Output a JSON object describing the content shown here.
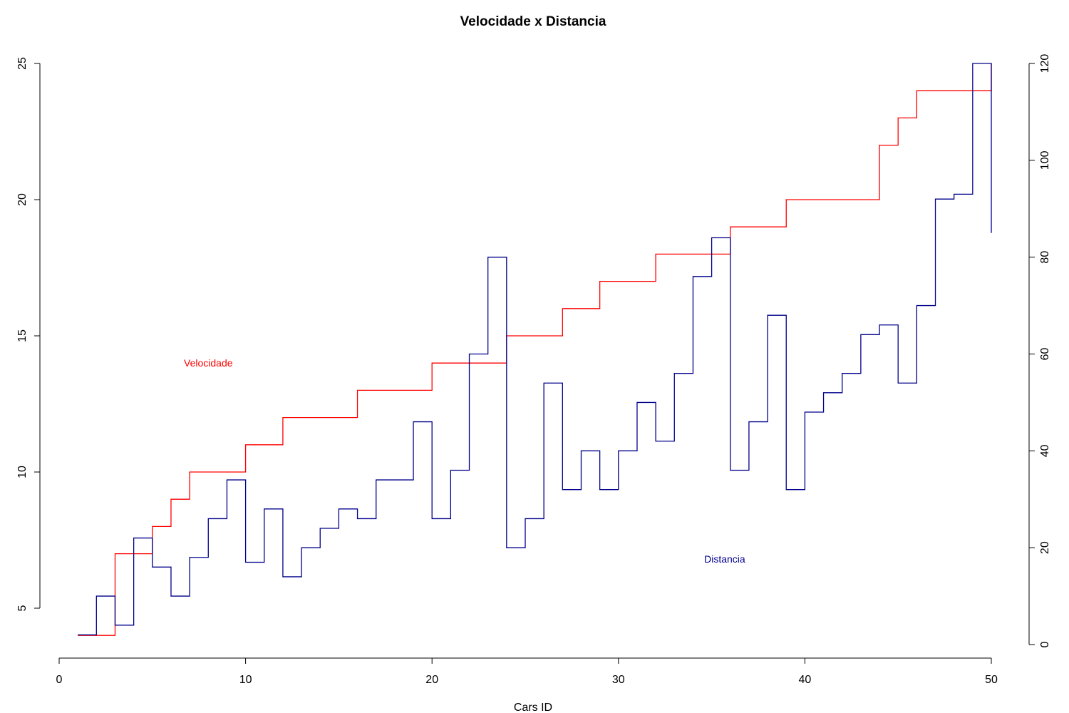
{
  "chart_data": {
    "type": "line",
    "step": true,
    "title": "Velocidade x Distancia",
    "xlabel": "Cars ID",
    "ylabel": "",
    "ylabel_right": "",
    "xlim": [
      0,
      50
    ],
    "ylim_left": [
      3.8,
      25.1
    ],
    "ylim_right": [
      0,
      120
    ],
    "x_ticks": [
      "0",
      "10",
      "20",
      "30",
      "40",
      "50"
    ],
    "y_left_ticks": [
      "5",
      "10",
      "15",
      "20",
      "25"
    ],
    "y_right_ticks": [
      "0",
      "20",
      "40",
      "60",
      "80",
      "100",
      "120"
    ],
    "grid": false,
    "colors": {
      "speed": "#ff0000",
      "dist": "#00008b"
    },
    "series": [
      {
        "axis": "left",
        "x": [
          1,
          2,
          3,
          4,
          5,
          6,
          7,
          8,
          9,
          10,
          11,
          12,
          13,
          14,
          15,
          16,
          17,
          18,
          19,
          20,
          21,
          22,
          23,
          24,
          25,
          26,
          27,
          28,
          29,
          30,
          31,
          32,
          33,
          34,
          35,
          36,
          37,
          38,
          39,
          40,
          41,
          42,
          43,
          44,
          45,
          46,
          47,
          48,
          49,
          50
        ],
        "values": [
          4,
          4,
          7,
          7,
          8,
          9,
          10,
          10,
          10,
          11,
          11,
          12,
          12,
          12,
          12,
          13,
          13,
          13,
          13,
          14,
          14,
          14,
          14,
          15,
          15,
          15,
          16,
          16,
          17,
          17,
          17,
          18,
          18,
          18,
          18,
          19,
          19,
          19,
          20,
          20,
          20,
          20,
          20,
          22,
          23,
          24,
          24,
          24,
          24,
          25
        ]
      },
      {
        "axis": "right",
        "x": [
          1,
          2,
          3,
          4,
          5,
          6,
          7,
          8,
          9,
          10,
          11,
          12,
          13,
          14,
          15,
          16,
          17,
          18,
          19,
          20,
          21,
          22,
          23,
          24,
          25,
          26,
          27,
          28,
          29,
          30,
          31,
          32,
          33,
          34,
          35,
          36,
          37,
          38,
          39,
          40,
          41,
          42,
          43,
          44,
          45,
          46,
          47,
          48,
          49,
          50
        ],
        "values": [
          2,
          10,
          4,
          22,
          16,
          10,
          18,
          26,
          34,
          17,
          28,
          14,
          20,
          24,
          28,
          26,
          34,
          34,
          46,
          26,
          36,
          60,
          80,
          20,
          26,
          54,
          32,
          40,
          32,
          40,
          50,
          42,
          56,
          76,
          84,
          36,
          46,
          68,
          32,
          48,
          52,
          56,
          64,
          66,
          54,
          70,
          92,
          93,
          120,
          85
        ]
      }
    ],
    "annotations": [
      {
        "text": "Velocidade",
        "x": 8,
        "y_left": 14
      },
      {
        "text": "Distancia",
        "x": 35.7,
        "y_left": 6.8
      }
    ]
  }
}
